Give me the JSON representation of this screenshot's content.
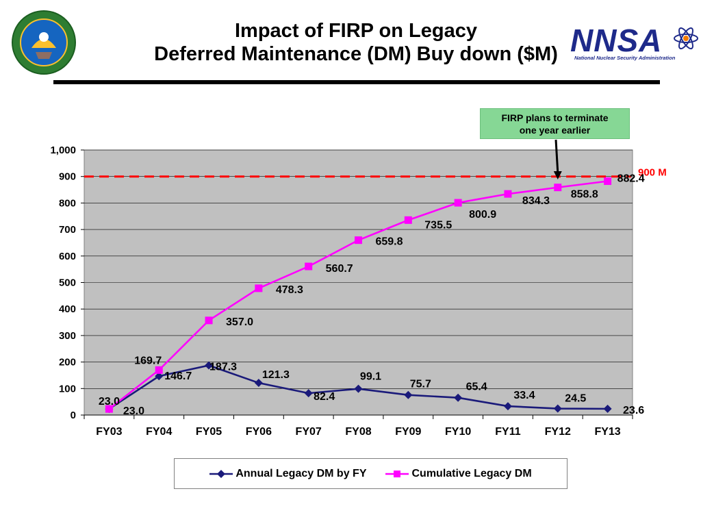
{
  "header": {
    "title_line1": "Impact of FIRP on Legacy",
    "title_line2": "Deferred Maintenance (DM) Buy down ($M)"
  },
  "logo": {
    "name": "NNSA",
    "subtitle": "National Nuclear Security Administration"
  },
  "seal": {
    "name": "Department of Energy seal"
  },
  "callout": {
    "line1": "FIRP plans to terminate",
    "line2": "one year earlier"
  },
  "chart_data": {
    "type": "line",
    "title": "",
    "xlabel": "",
    "ylabel": "",
    "categories": [
      "FY03",
      "FY04",
      "FY05",
      "FY06",
      "FY07",
      "FY08",
      "FY09",
      "FY10",
      "FY11",
      "FY12",
      "FY13"
    ],
    "ylim": [
      0,
      1000
    ],
    "yticks": [
      0,
      100,
      200,
      300,
      400,
      500,
      600,
      700,
      800,
      900,
      1000
    ],
    "ytick_labels": [
      "0",
      "100",
      "200",
      "300",
      "400",
      "500",
      "600",
      "700",
      "800",
      "900",
      "1,000"
    ],
    "grid": true,
    "legend_position": "bottom",
    "series": [
      {
        "name": "Annual Legacy DM by FY",
        "color": "#1a1a7a",
        "marker": "diamond",
        "values": [
          23.0,
          146.7,
          187.3,
          121.3,
          82.4,
          99.1,
          75.7,
          65.4,
          33.4,
          24.5,
          23.6
        ],
        "labels": [
          "23.0",
          "146.7",
          "187.3",
          "121.3",
          "82.4",
          "99.1",
          "75.7",
          "65.4",
          "33.4",
          "24.5",
          "23.6"
        ]
      },
      {
        "name": "Cumulative Legacy DM",
        "color": "#ff00ff",
        "marker": "square",
        "values": [
          23.0,
          169.7,
          357.0,
          478.3,
          560.7,
          659.8,
          735.5,
          800.9,
          834.3,
          858.8,
          882.4
        ],
        "labels": [
          "23.0",
          "169.7",
          "357.0",
          "478.3",
          "560.7",
          "659.8",
          "735.5",
          "800.9",
          "834.3",
          "858.8",
          "882.4"
        ]
      }
    ],
    "reference_line": {
      "value": 900,
      "label": "900 M",
      "color": "#ff0000",
      "style": "dashed"
    },
    "plot_background": "#c0c0c0"
  }
}
